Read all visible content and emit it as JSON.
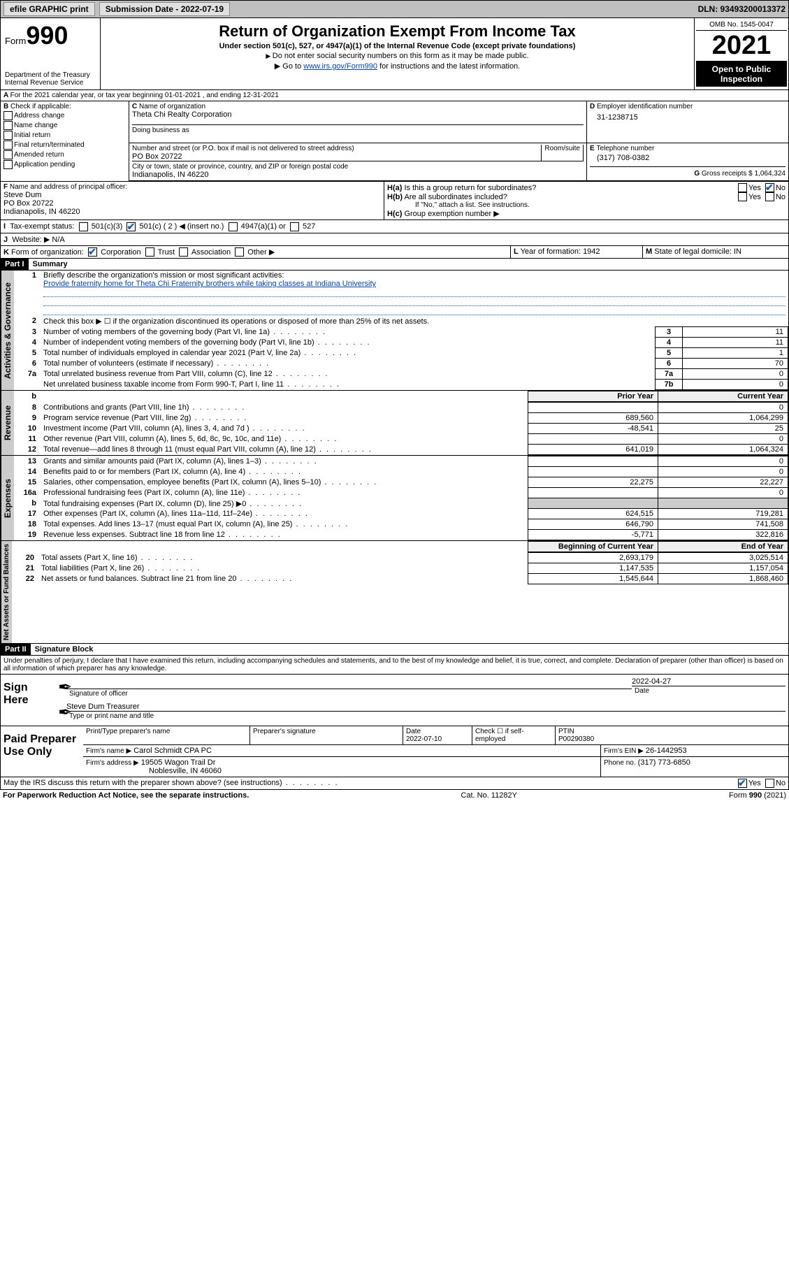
{
  "topbar": {
    "efile_label": "efile GRAPHIC print",
    "submission_label": "Submission Date - 2022-07-19",
    "dln_label": "DLN: 93493200013372"
  },
  "header": {
    "form_word": "Form",
    "form_num": "990",
    "dept": "Department of the Treasury",
    "irs": "Internal Revenue Service",
    "title": "Return of Organization Exempt From Income Tax",
    "sub": "Under section 501(c), 527, or 4947(a)(1) of the Internal Revenue Code (except private foundations)",
    "line1": "Do not enter social security numbers on this form as it may be made public.",
    "line2_pre": "Go to ",
    "line2_link": "www.irs.gov/Form990",
    "line2_post": " for instructions and the latest information.",
    "omb": "OMB No. 1545-0047",
    "year": "2021",
    "inspect1": "Open to Public",
    "inspect2": "Inspection"
  },
  "A": {
    "text": "For the 2021 calendar year, or tax year beginning 01-01-2021   , and ending 12-31-2021"
  },
  "B": {
    "label": "Check if applicable:",
    "items": [
      "Address change",
      "Name change",
      "Initial return",
      "Final return/terminated",
      "Amended return",
      "Application pending"
    ]
  },
  "C": {
    "name_label": "Name of organization",
    "name": "Theta Chi Realty Corporation",
    "dba_label": "Doing business as",
    "addr_label": "Number and street (or P.O. box if mail is not delivered to street address)",
    "room_label": "Room/suite",
    "addr": "PO Box 20722",
    "city_label": "City or town, state or province, country, and ZIP or foreign postal code",
    "city": "Indianapolis, IN  46220"
  },
  "D": {
    "label": "Employer identification number",
    "val": "31-1238715"
  },
  "E": {
    "label": "Telephone number",
    "val": "(317) 708-0382"
  },
  "G": {
    "label": "Gross receipts $",
    "val": "1,064,324"
  },
  "F": {
    "label": "Name and address of principal officer:",
    "name": "Steve Dum",
    "addr1": "PO Box 20722",
    "addr2": "Indianapolis, IN  46220"
  },
  "H": {
    "a": "Is this a group return for subordinates?",
    "b": "Are all subordinates included?",
    "b_note": "If \"No,\" attach a list. See instructions.",
    "c": "Group exemption number ▶",
    "yes": "Yes",
    "no": "No"
  },
  "I": {
    "label": "Tax-exempt status:",
    "c3": "501(c)(3)",
    "c_pre": "501(c) ( 2 ) ◀ (insert no.)",
    "a1": "4947(a)(1) or",
    "s527": "527"
  },
  "J": {
    "label": "Website: ▶",
    "val": "N/A"
  },
  "K": {
    "label": "Form of organization:",
    "opts": [
      "Corporation",
      "Trust",
      "Association",
      "Other ▶"
    ]
  },
  "L": {
    "label": "Year of formation:",
    "val": "1942"
  },
  "M": {
    "label": "State of legal domicile:",
    "val": "IN"
  },
  "part1": {
    "bar": "Part I",
    "title": "Summary",
    "l1_label": "Briefly describe the organization's mission or most significant activities:",
    "l1_text": "Provide fraternity home for Theta Chi Fraternity brothers while taking classes at Indiana University",
    "l2": "Check this box ▶ ☐ if the organization discontinued its operations or disposed of more than 25% of its net assets.",
    "rows_gov": [
      {
        "n": "3",
        "t": "Number of voting members of the governing body (Part VI, line 1a)",
        "box": "3",
        "v": "11"
      },
      {
        "n": "4",
        "t": "Number of independent voting members of the governing body (Part VI, line 1b)",
        "box": "4",
        "v": "11"
      },
      {
        "n": "5",
        "t": "Total number of individuals employed in calendar year 2021 (Part V, line 2a)",
        "box": "5",
        "v": "1"
      },
      {
        "n": "6",
        "t": "Total number of volunteers (estimate if necessary)",
        "box": "6",
        "v": "70"
      },
      {
        "n": "7a",
        "t": "Total unrelated business revenue from Part VIII, column (C), line 12",
        "box": "7a",
        "v": "0"
      },
      {
        "n": "",
        "t": "Net unrelated business taxable income from Form 990-T, Part I, line 11",
        "box": "7b",
        "v": "0"
      }
    ],
    "hdr_prior": "Prior Year",
    "hdr_curr": "Current Year",
    "rows_rev": [
      {
        "n": "8",
        "t": "Contributions and grants (Part VIII, line 1h)",
        "p": "",
        "c": "0"
      },
      {
        "n": "9",
        "t": "Program service revenue (Part VIII, line 2g)",
        "p": "689,560",
        "c": "1,064,299"
      },
      {
        "n": "10",
        "t": "Investment income (Part VIII, column (A), lines 3, 4, and 7d )",
        "p": "-48,541",
        "c": "25"
      },
      {
        "n": "11",
        "t": "Other revenue (Part VIII, column (A), lines 5, 6d, 8c, 9c, 10c, and 11e)",
        "p": "",
        "c": "0"
      },
      {
        "n": "12",
        "t": "Total revenue—add lines 8 through 11 (must equal Part VIII, column (A), line 12)",
        "p": "641,019",
        "c": "1,064,324"
      }
    ],
    "rows_exp": [
      {
        "n": "13",
        "t": "Grants and similar amounts paid (Part IX, column (A), lines 1–3)",
        "p": "",
        "c": "0"
      },
      {
        "n": "14",
        "t": "Benefits paid to or for members (Part IX, column (A), line 4)",
        "p": "",
        "c": "0"
      },
      {
        "n": "15",
        "t": "Salaries, other compensation, employee benefits (Part IX, column (A), lines 5–10)",
        "p": "22,275",
        "c": "22,227"
      },
      {
        "n": "16a",
        "t": "Professional fundraising fees (Part IX, column (A), line 11e)",
        "p": "",
        "c": "0"
      },
      {
        "n": "b",
        "t": "Total fundraising expenses (Part IX, column (D), line 25) ▶0",
        "p": "shade",
        "c": "shade"
      },
      {
        "n": "17",
        "t": "Other expenses (Part IX, column (A), lines 11a–11d, 11f–24e)",
        "p": "624,515",
        "c": "719,281"
      },
      {
        "n": "18",
        "t": "Total expenses. Add lines 13–17 (must equal Part IX, column (A), line 25)",
        "p": "646,790",
        "c": "741,508"
      },
      {
        "n": "19",
        "t": "Revenue less expenses. Subtract line 18 from line 12",
        "p": "-5,771",
        "c": "322,816"
      }
    ],
    "hdr_boy": "Beginning of Current Year",
    "hdr_eoy": "End of Year",
    "rows_na": [
      {
        "n": "20",
        "t": "Total assets (Part X, line 16)",
        "p": "2,693,179",
        "c": "3,025,514"
      },
      {
        "n": "21",
        "t": "Total liabilities (Part X, line 26)",
        "p": "1,147,535",
        "c": "1,157,054"
      },
      {
        "n": "22",
        "t": "Net assets or fund balances. Subtract line 21 from line 20",
        "p": "1,545,644",
        "c": "1,868,460"
      }
    ]
  },
  "vtabs": {
    "gov": "Activities & Governance",
    "rev": "Revenue",
    "exp": "Expenses",
    "na": "Net Assets or\nFund Balances"
  },
  "part2": {
    "bar": "Part II",
    "title": "Signature Block",
    "decl": "Under penalties of perjury, I declare that I have examined this return, including accompanying schedules and statements, and to the best of my knowledge and belief, it is true, correct, and complete. Declaration of preparer (other than officer) is based on all information of which preparer has any knowledge.",
    "sign_here": "Sign Here",
    "sig_officer": "Signature of officer",
    "date_label": "Date",
    "sig_date": "2022-04-27",
    "officer_name": "Steve Dum Treasurer",
    "type_name": "Type or print name and title",
    "paid": "Paid Preparer Use Only",
    "prep_name_label": "Print/Type preparer's name",
    "prep_sig_label": "Preparer's signature",
    "prep_date_label": "Date",
    "prep_date": "2022-07-10",
    "check_self": "Check ☐ if self-employed",
    "ptin_label": "PTIN",
    "ptin": "P00290380",
    "firm_name_label": "Firm's name    ▶",
    "firm_name": "Carol Schmidt CPA PC",
    "firm_ein_label": "Firm's EIN ▶",
    "firm_ein": "26-1442953",
    "firm_addr_label": "Firm's address ▶",
    "firm_addr1": "19505 Wagon Trail Dr",
    "firm_addr2": "Noblesville, IN  46060",
    "firm_phone_label": "Phone no.",
    "firm_phone": "(317) 773-6850",
    "may_irs": "May the IRS discuss this return with the preparer shown above? (see instructions)"
  },
  "footer": {
    "left": "For Paperwork Reduction Act Notice, see the separate instructions.",
    "mid": "Cat. No. 11282Y",
    "right": "Form 990 (2021)"
  }
}
